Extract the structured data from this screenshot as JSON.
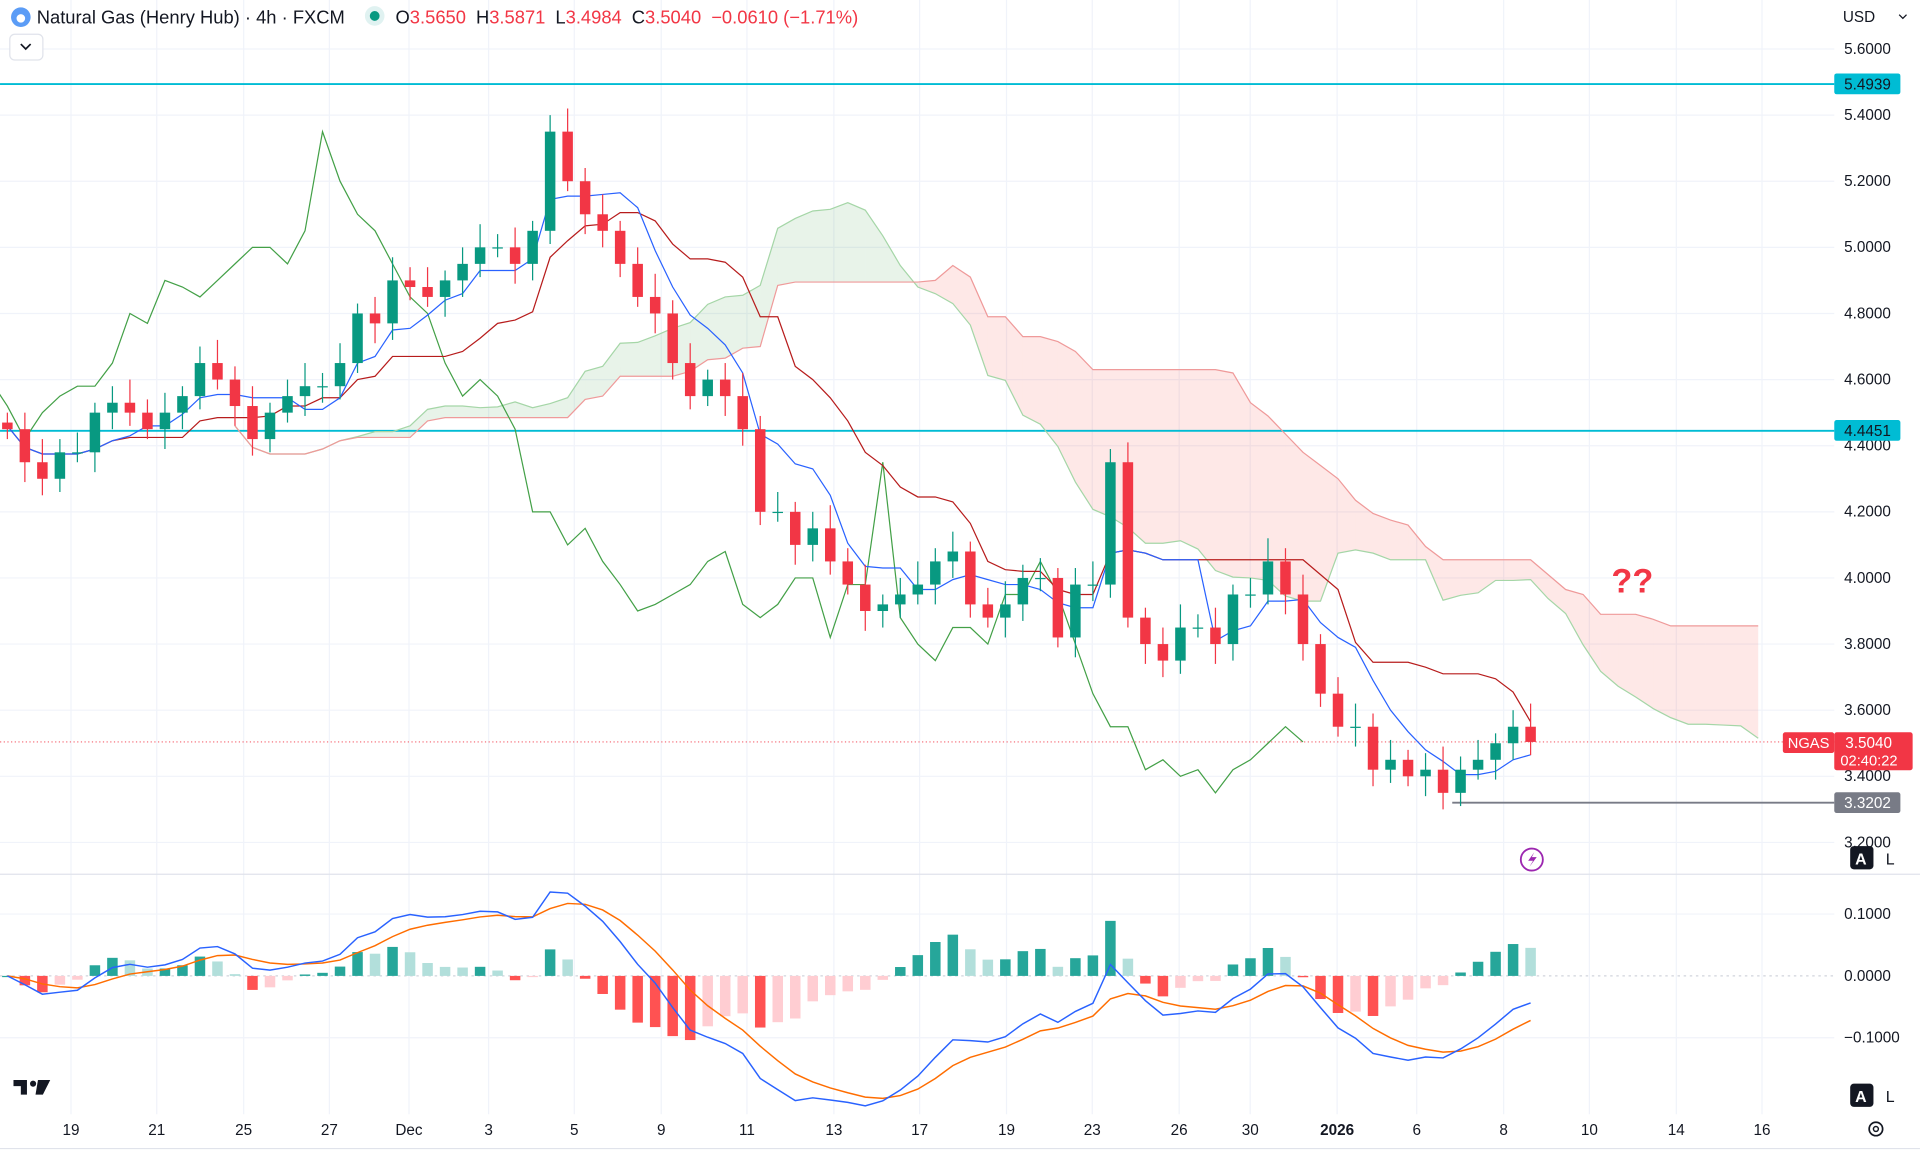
{
  "header": {
    "title": "Natural Gas (Henry Hub) · 4h · FXCM",
    "open_label": "O",
    "open": "3.5650",
    "high_label": "H",
    "high": "3.5871",
    "low_label": "L",
    "low": "3.4984",
    "close_label": "C",
    "close": "3.5040",
    "change": "−0.0610 (−1.71%)",
    "currency": "USD"
  },
  "price_axis": [
    "5.6000",
    "5.4000",
    "5.2000",
    "5.0000",
    "4.8000",
    "4.6000",
    "4.4000",
    "4.2000",
    "4.0000",
    "3.8000",
    "3.6000",
    "3.4000",
    "3.2000"
  ],
  "levels": {
    "upper": "5.4939",
    "middle": "4.4451",
    "low": "3.3202",
    "current": "3.5040",
    "symbol": "NGAS",
    "countdown": "02:40:22"
  },
  "annotation": "??",
  "macd_axis": [
    "0.1000",
    "0.0000",
    "−0.1000"
  ],
  "time_axis": [
    "19",
    "21",
    "25",
    "27",
    "Dec",
    "3",
    "5",
    "9",
    "11",
    "13",
    "17",
    "19",
    "23",
    "26",
    "30",
    "2026",
    "6",
    "8",
    "10",
    "14",
    "16"
  ],
  "scale_buttons": {
    "auto": "A",
    "log": "L"
  },
  "colors": {
    "up": "#089981",
    "down": "#f23645",
    "level": "#00bcd4",
    "tenkan": "#2962ff",
    "kijun": "#b71c1c",
    "chikou": "#43a047",
    "macd": "#2962ff",
    "signal": "#ff6d00"
  },
  "chart_data": {
    "type": "candlestick",
    "symbol": "NGAS",
    "interval": "4h",
    "indicators": [
      "Ichimoku Cloud",
      "MACD"
    ],
    "ylim": [
      3.2,
      5.6
    ],
    "close": [
      4.45,
      4.35,
      4.3,
      4.38,
      4.38,
      4.5,
      4.53,
      4.5,
      4.45,
      4.5,
      4.55,
      4.65,
      4.6,
      4.52,
      4.42,
      4.5,
      4.55,
      4.58,
      4.58,
      4.65,
      4.8,
      4.77,
      4.9,
      4.88,
      4.85,
      4.9,
      4.95,
      5.0,
      5.0,
      4.95,
      5.05,
      5.35,
      5.2,
      5.1,
      5.05,
      4.95,
      4.85,
      4.8,
      4.65,
      4.55,
      4.6,
      4.55,
      4.45,
      4.2,
      4.2,
      4.1,
      4.15,
      4.05,
      3.98,
      3.9,
      3.92,
      3.95,
      3.98,
      4.05,
      4.08,
      3.92,
      3.88,
      3.92,
      4.0,
      4.0,
      3.82,
      3.98,
      3.98,
      4.35,
      3.88,
      3.8,
      3.75,
      3.85,
      3.85,
      3.8,
      3.95,
      3.95,
      4.05,
      3.95,
      3.8,
      3.65,
      3.55,
      3.55,
      3.42,
      3.45,
      3.4,
      3.42,
      3.35,
      3.42,
      3.45,
      3.5,
      3.55,
      3.504
    ]
  }
}
